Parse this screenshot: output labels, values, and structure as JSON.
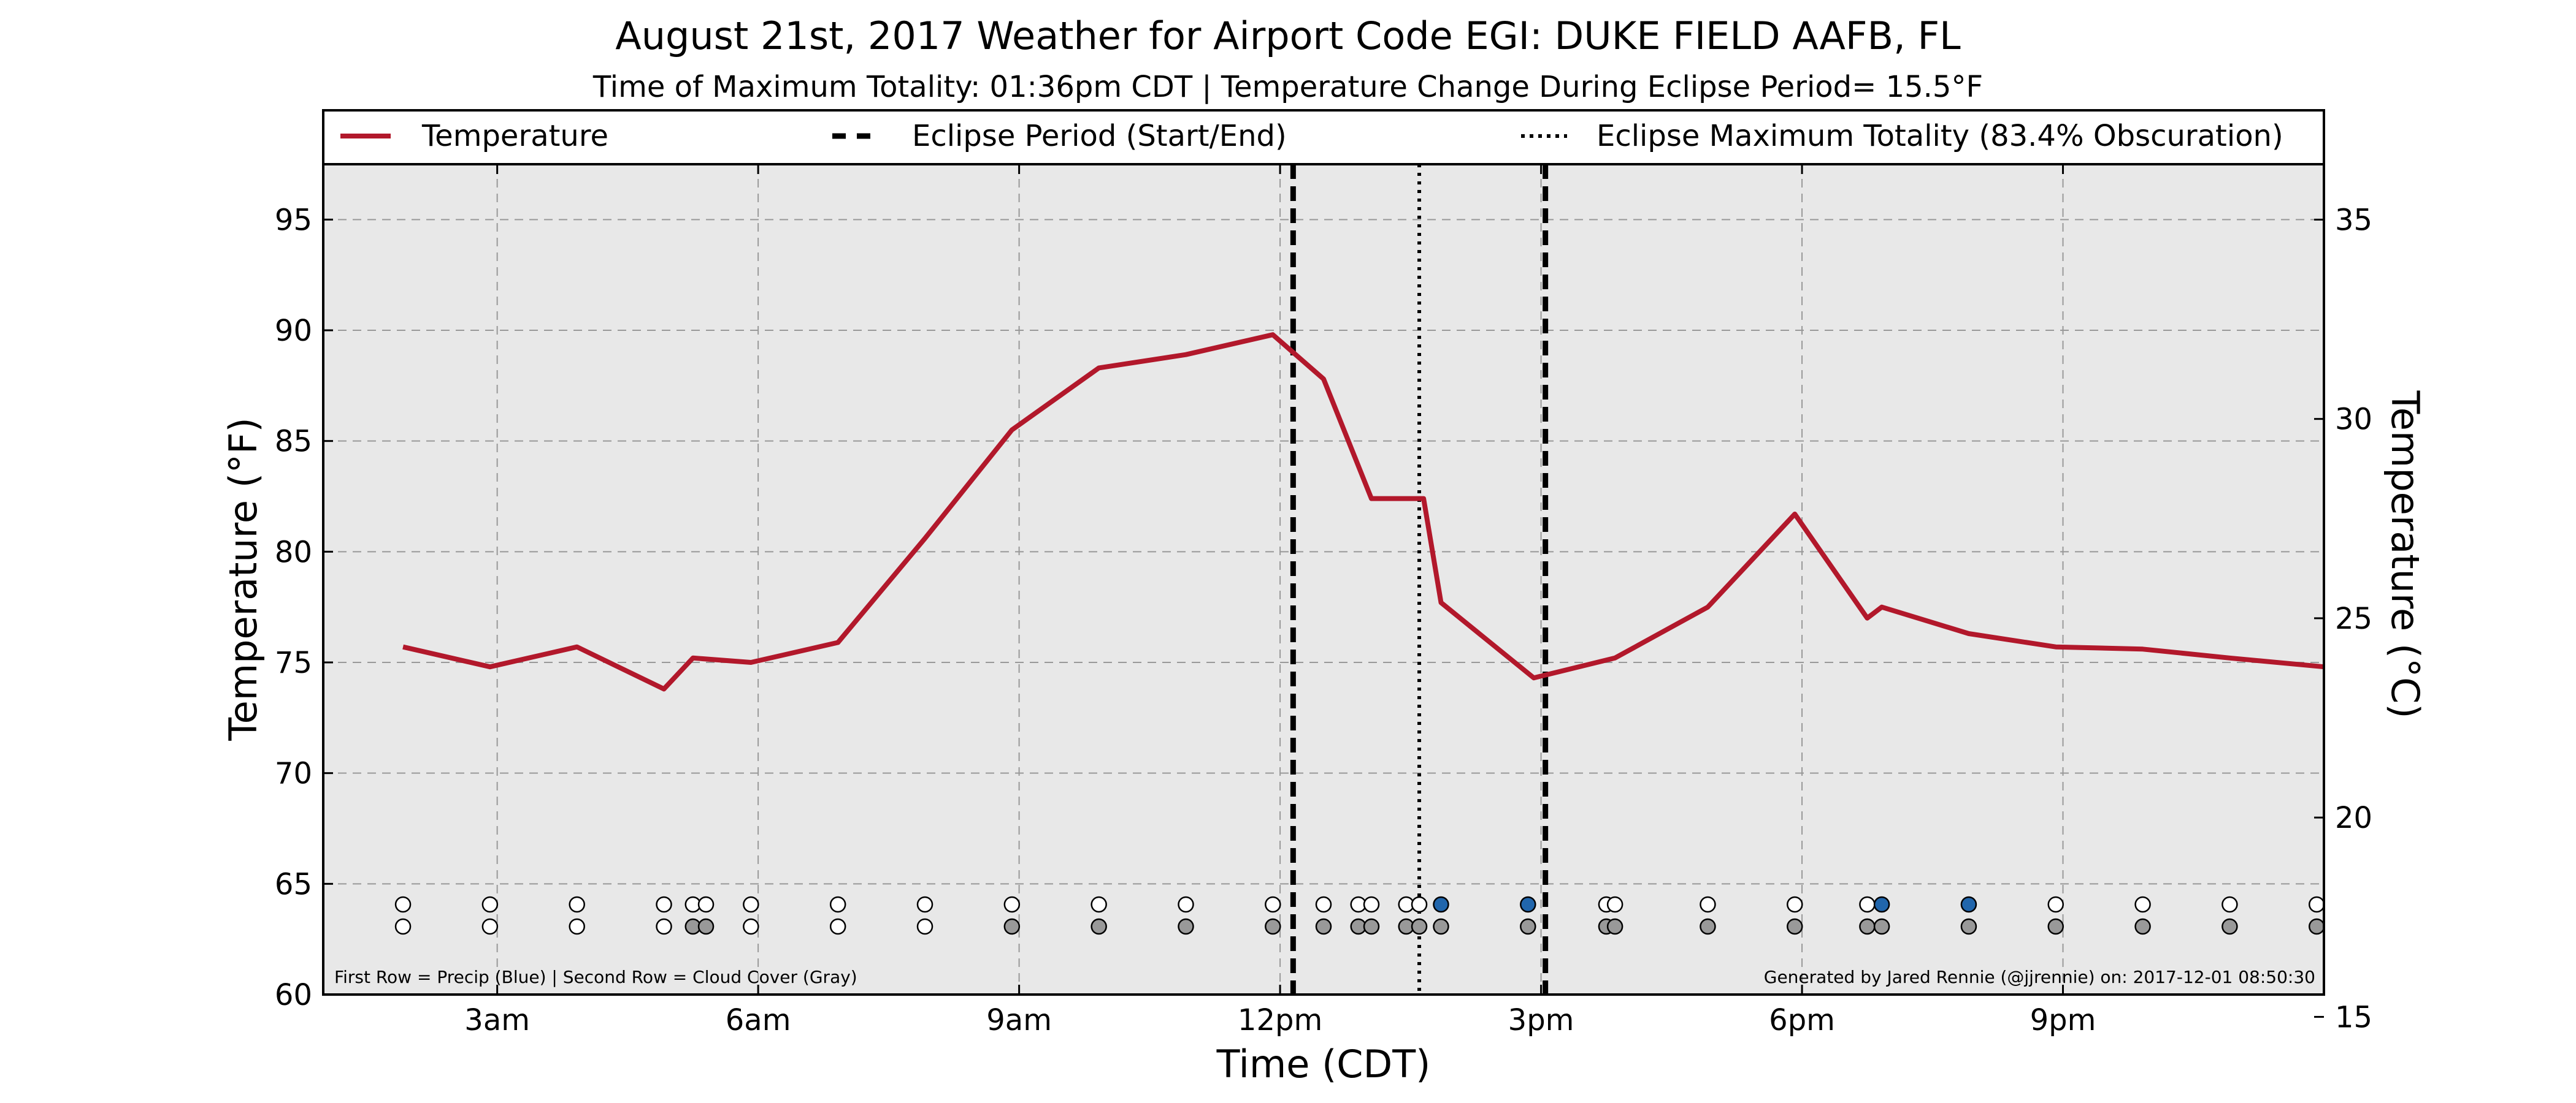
{
  "chart_data": {
    "type": "line",
    "title": "August 21st, 2017 Weather for Airport Code EGI: DUKE FIELD AAFB, FL",
    "subtitle": "Time of Maximum Totality: 01:36pm CDT | Temperature Change During Eclipse Period= 15.5°F",
    "xlabel": "Time (CDT)",
    "ylabel": "Temperature (°F)",
    "ylabel_right": "Temperature (°C)",
    "xlim": [
      1.0,
      24.0
    ],
    "ylim": [
      60,
      97.5
    ],
    "ylim_right": [
      15.56,
      36.39
    ],
    "x_ticks": [
      {
        "value": 3,
        "label": "3am"
      },
      {
        "value": 6,
        "label": "6am"
      },
      {
        "value": 9,
        "label": "9am"
      },
      {
        "value": 12,
        "label": "12pm"
      },
      {
        "value": 15,
        "label": "3pm"
      },
      {
        "value": 18,
        "label": "6pm"
      },
      {
        "value": 21,
        "label": "9pm"
      }
    ],
    "y_ticks": [
      60,
      65,
      70,
      75,
      80,
      85,
      90,
      95
    ],
    "y_ticks_right": [
      15,
      20,
      25,
      30,
      35
    ],
    "grid": true,
    "legend": {
      "placement": "top",
      "entries": [
        {
          "label": "Temperature",
          "style": "solid"
        },
        {
          "label": "Eclipse Period (Start/End)",
          "style": "dashed"
        },
        {
          "label": "Eclipse Maximum Totality (83.4% Obscuration)",
          "style": "dotted"
        }
      ]
    },
    "series": [
      {
        "name": "Temperature",
        "color": "#b2182b",
        "x": [
          1.917,
          2.917,
          3.917,
          4.917,
          5.25,
          5.917,
          6.917,
          7.917,
          8.917,
          9.917,
          10.917,
          11.917,
          12.5,
          13.05,
          13.65,
          13.85,
          14.917,
          15.85,
          16.917,
          17.917,
          18.75,
          18.917,
          19.917,
          20.917,
          21.917,
          22.917,
          24.0
        ],
        "y": [
          75.7,
          74.8,
          75.7,
          73.8,
          75.2,
          75.0,
          75.9,
          80.6,
          85.5,
          88.3,
          88.9,
          89.8,
          87.8,
          82.4,
          82.4,
          77.7,
          74.3,
          75.2,
          77.5,
          81.7,
          77.0,
          77.5,
          76.3,
          75.7,
          75.6,
          75.2,
          74.8
        ]
      }
    ],
    "eclipse_start": 12.15,
    "eclipse_end": 15.05,
    "eclipse_max": 13.6,
    "observation_times": [
      1.917,
      2.917,
      3.917,
      4.917,
      5.25,
      5.4,
      5.917,
      6.917,
      7.917,
      8.917,
      9.917,
      10.917,
      11.917,
      12.5,
      12.9,
      13.05,
      13.45,
      13.6,
      13.85,
      14.85,
      15.75,
      15.85,
      16.917,
      17.917,
      18.75,
      18.917,
      19.917,
      20.917,
      21.917,
      22.917,
      23.917
    ],
    "precip_flags": [
      0,
      0,
      0,
      0,
      0,
      0,
      0,
      0,
      0,
      0,
      0,
      0,
      0,
      0,
      0,
      0,
      0,
      0,
      1,
      1,
      0,
      0,
      0,
      0,
      0,
      1,
      1,
      0,
      0,
      0,
      0
    ],
    "cloud_flags": [
      0,
      0,
      0,
      0,
      1,
      1,
      0,
      0,
      0,
      1,
      1,
      1,
      1,
      1,
      1,
      1,
      1,
      1,
      1,
      1,
      1,
      1,
      1,
      1,
      1,
      1,
      1,
      1,
      1,
      1,
      1
    ],
    "colors": {
      "plot_bg": "#e8e8e8",
      "line": "#b2182b",
      "precip": "#2166ac",
      "cloud": "#999999",
      "empty": "#ffffff"
    },
    "footnote_left": "First Row = Precip (Blue) | Second Row = Cloud Cover (Gray)",
    "footnote_right": "Generated by Jared Rennie (@jjrennie) on: 2017-12-01 08:50:30"
  }
}
